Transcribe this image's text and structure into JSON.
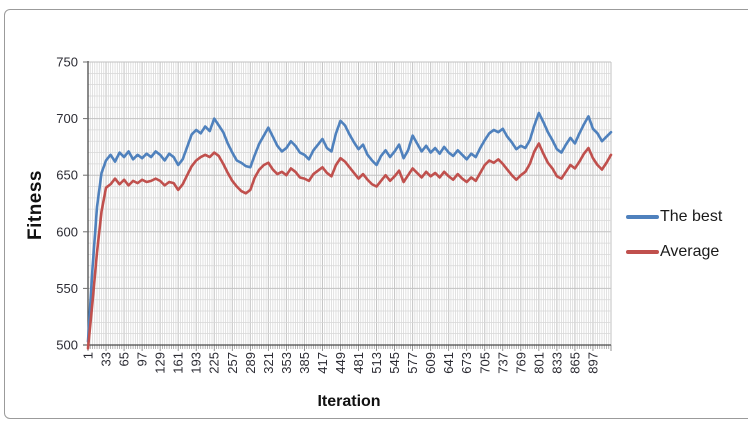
{
  "chart_data": {
    "type": "line",
    "xlabel": "Iteration",
    "ylabel": "Fitness",
    "x_range": [
      1,
      929
    ],
    "ylim": [
      500,
      750
    ],
    "y_ticks": [
      500,
      550,
      600,
      650,
      700,
      750
    ],
    "x_tick_labels": [
      1,
      33,
      65,
      97,
      129,
      161,
      193,
      225,
      257,
      289,
      321,
      353,
      385,
      417,
      449,
      481,
      513,
      545,
      577,
      609,
      641,
      673,
      705,
      737,
      769,
      801,
      833,
      865,
      897
    ],
    "grid": {
      "on": true,
      "x_minor_step": 4,
      "x_major_step": 32,
      "y_minor_step": 10,
      "y_major_step": 50,
      "minor_color": "#d7d7d7",
      "major_color": "#c2c2c2"
    },
    "axis_color": "#4a4a4a",
    "tick_label_color": "#2b2b33",
    "legend_position": "right",
    "x": [
      1,
      9,
      17,
      25,
      33,
      41,
      49,
      57,
      65,
      73,
      81,
      89,
      97,
      105,
      113,
      121,
      129,
      137,
      145,
      153,
      161,
      169,
      177,
      185,
      193,
      201,
      209,
      217,
      225,
      233,
      241,
      249,
      257,
      265,
      273,
      281,
      289,
      297,
      305,
      313,
      321,
      329,
      337,
      345,
      353,
      361,
      369,
      377,
      385,
      393,
      401,
      409,
      417,
      425,
      433,
      441,
      449,
      457,
      465,
      473,
      481,
      489,
      497,
      505,
      513,
      521,
      529,
      537,
      545,
      553,
      561,
      569,
      577,
      585,
      593,
      601,
      609,
      617,
      625,
      633,
      641,
      649,
      657,
      665,
      673,
      681,
      689,
      697,
      705,
      713,
      721,
      729,
      737,
      745,
      753,
      761,
      769,
      777,
      785,
      793,
      801,
      809,
      817,
      825,
      833,
      841,
      849,
      857,
      865,
      873,
      881,
      889,
      897,
      905,
      913,
      921,
      929
    ],
    "series": [
      {
        "name": "The best",
        "color": "#4F81BD",
        "values": [
          503,
          568,
          622,
          652,
          663,
          668,
          662,
          670,
          666,
          671,
          664,
          668,
          665,
          669,
          666,
          671,
          668,
          663,
          669,
          666,
          659,
          664,
          675,
          686,
          690,
          687,
          693,
          689,
          700,
          694,
          688,
          678,
          670,
          663,
          661,
          658,
          657,
          668,
          678,
          685,
          692,
          684,
          676,
          671,
          674,
          680,
          676,
          670,
          668,
          664,
          672,
          677,
          682,
          674,
          671,
          687,
          698,
          694,
          686,
          679,
          673,
          677,
          668,
          663,
          659,
          667,
          672,
          666,
          671,
          677,
          665,
          672,
          685,
          678,
          671,
          676,
          670,
          674,
          669,
          675,
          670,
          667,
          672,
          668,
          664,
          669,
          666,
          674,
          681,
          687,
          690,
          688,
          691,
          684,
          679,
          673,
          676,
          674,
          681,
          694,
          705,
          697,
          688,
          681,
          673,
          670,
          677,
          683,
          678,
          687,
          695,
          702,
          691,
          687,
          680,
          684,
          688
        ]
      },
      {
        "name": "Average",
        "color": "#C0504D",
        "values": [
          497,
          538,
          582,
          618,
          639,
          642,
          647,
          642,
          646,
          641,
          645,
          643,
          646,
          644,
          645,
          647,
          645,
          641,
          644,
          643,
          637,
          642,
          650,
          658,
          663,
          666,
          668,
          666,
          670,
          667,
          660,
          652,
          645,
          640,
          636,
          634,
          637,
          648,
          655,
          659,
          661,
          655,
          651,
          653,
          650,
          656,
          653,
          648,
          647,
          645,
          651,
          654,
          657,
          652,
          649,
          659,
          665,
          662,
          657,
          652,
          647,
          651,
          646,
          642,
          640,
          645,
          650,
          645,
          649,
          654,
          644,
          650,
          656,
          652,
          648,
          653,
          649,
          652,
          648,
          653,
          649,
          646,
          651,
          647,
          644,
          648,
          645,
          652,
          659,
          663,
          661,
          664,
          660,
          655,
          650,
          646,
          650,
          653,
          660,
          671,
          678,
          669,
          661,
          656,
          649,
          647,
          653,
          659,
          656,
          662,
          669,
          674,
          665,
          659,
          655,
          661,
          668
        ]
      }
    ]
  }
}
